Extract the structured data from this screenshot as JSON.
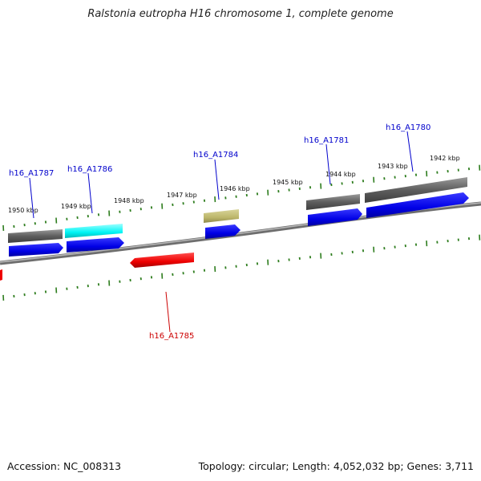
{
  "title": "Ralstonia eutropha H16 chromosome 1, complete genome",
  "footer": {
    "accession": "Accession: NC_008313",
    "topology": "Topology: circular; Length: 4,052,032 bp; Genes: 3,711"
  },
  "colors": {
    "backbone": "#8a8a8a",
    "tick": "#2e7d1e",
    "gene_label_blue": "#0000cc",
    "gene_label_red": "#cc0000",
    "cds": "#0000ee",
    "gray_gene": "#5a5a5a",
    "cyan_gene": "#00ffff",
    "khaki_gene": "#bdb76b",
    "red_gene": "#ee0000"
  },
  "scale": {
    "labels": [
      "1950 kbp",
      "1949 kbp",
      "1948 kbp",
      "1947 kbp",
      "1946 kbp",
      "1945 kbp",
      "1944 kbp",
      "1943 kbp",
      "1942 kbp"
    ]
  },
  "genes": [
    {
      "id": "h16_A1787",
      "label": "h16_A1787",
      "strand": "forward"
    },
    {
      "id": "h16_A1786",
      "label": "h16_A1786",
      "strand": "forward"
    },
    {
      "id": "h16_A1784",
      "label": "h16_A1784",
      "strand": "forward"
    },
    {
      "id": "h16_A1781",
      "label": "h16_A1781",
      "strand": "forward"
    },
    {
      "id": "h16_A1780",
      "label": "h16_A1780",
      "strand": "forward"
    },
    {
      "id": "h16_A1785",
      "label": "h16_A1785",
      "strand": "reverse"
    }
  ]
}
